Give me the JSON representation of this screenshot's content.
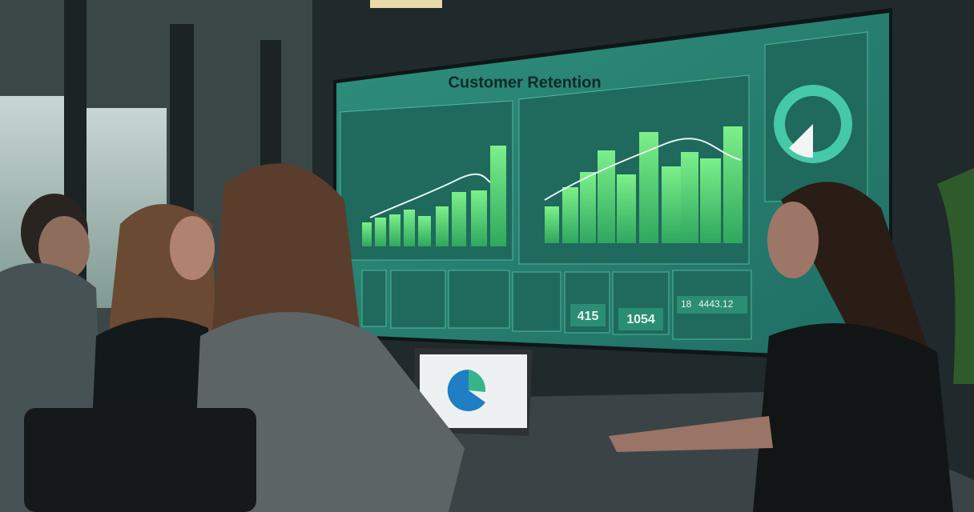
{
  "screen": {
    "title": "Customer Retention",
    "kpis": [
      "415",
      "1054"
    ],
    "stats": [
      "18",
      "4443.12"
    ]
  }
}
